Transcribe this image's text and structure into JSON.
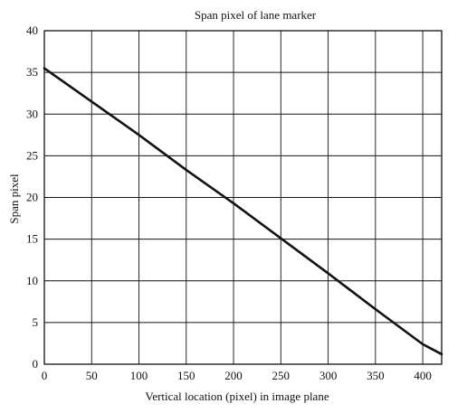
{
  "chart_data": {
    "type": "line",
    "title": "Span pixel of lane marker",
    "xlabel": "Vertical location (pixel) in image plane",
    "ylabel": "Span pixel",
    "xlim": [
      0,
      420
    ],
    "ylim": [
      0,
      40
    ],
    "x_ticks": [
      0,
      50,
      100,
      150,
      200,
      250,
      300,
      350,
      400
    ],
    "y_ticks": [
      0,
      5,
      10,
      15,
      20,
      25,
      30,
      35,
      40
    ],
    "x_tick_labels": [
      "0",
      "50",
      "100",
      "150",
      "200",
      "250",
      "300",
      "350",
      "400"
    ],
    "y_tick_labels": [
      "0",
      "5",
      "10",
      "15",
      "20",
      "25",
      "30",
      "35",
      "40"
    ],
    "grid": true,
    "legend": "none",
    "series": [
      {
        "x": [
          0,
          50,
          100,
          150,
          200,
          250,
          300,
          350,
          400,
          420
        ],
        "y": [
          35.5,
          31.5,
          27.5,
          23.3,
          19.3,
          15.1,
          10.9,
          6.6,
          2.4,
          1.2
        ]
      }
    ],
    "colors": {
      "line": "#111111",
      "grid": "#111111",
      "axis": "#111111"
    }
  }
}
